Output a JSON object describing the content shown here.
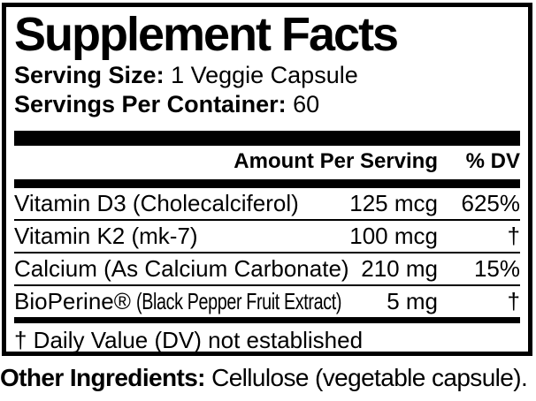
{
  "label": {
    "title": "Supplement Facts",
    "serving_size": {
      "label": "Serving Size:",
      "value": " 1 Veggie Capsule"
    },
    "servings_per_container": {
      "label": "Servings Per Container:",
      "value": " 60"
    },
    "columns": {
      "amount": "Amount Per Serving",
      "dv": "% DV"
    },
    "rows": [
      {
        "name": "Vitamin D3 (Cholecalciferol)",
        "name_detail": "",
        "amount": "125 mcg",
        "dv": "625%"
      },
      {
        "name": "Vitamin K2 (mk-7)",
        "name_detail": "",
        "amount": "100 mcg",
        "dv": "†"
      },
      {
        "name": "Calcium (As Calcium Carbonate)",
        "name_detail": "",
        "amount": "210 mg",
        "dv": "15%"
      },
      {
        "name": "BioPerine®",
        "name_detail": "(Black Pepper Fruit Extract)",
        "amount": "5 mg",
        "dv": "†"
      }
    ],
    "footnote": "† Daily Value (DV) not established",
    "other_ingredients": {
      "label": "Other Ingredients:",
      "value": " Cellulose (vegetable capsule)."
    },
    "colors": {
      "ink": "#000000",
      "background": "#ffffff"
    }
  }
}
